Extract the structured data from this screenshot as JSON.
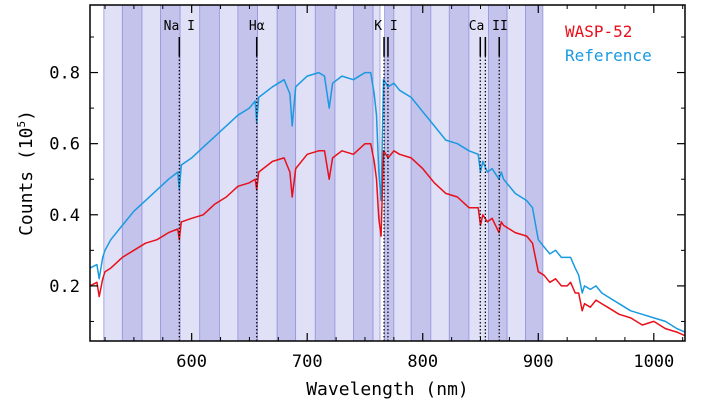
{
  "chart_data": {
    "type": "line",
    "xlabel": "Wavelength (nm)",
    "ylabel_prefix": "Counts (10",
    "ylabel_exp": "5",
    "ylabel_suffix": ")",
    "xlim": [
      512,
      1027
    ],
    "ylim": [
      0.045,
      0.99
    ],
    "x_ticks": [
      600,
      700,
      800,
      900,
      1000
    ],
    "x_tick_labels": [
      "600",
      "700",
      "800",
      "900",
      "1000"
    ],
    "y_ticks": [
      0.2,
      0.4,
      0.6,
      0.8
    ],
    "y_tick_labels": [
      "0.2",
      "0.4",
      "0.6",
      "0.8"
    ],
    "bands": [
      {
        "x0": 524,
        "x1": 540,
        "shade": "light"
      },
      {
        "x0": 540,
        "x1": 557,
        "shade": "dark"
      },
      {
        "x0": 557,
        "x1": 573,
        "shade": "light"
      },
      {
        "x0": 573,
        "x1": 590,
        "shade": "dark"
      },
      {
        "x0": 590,
        "x1": 607,
        "shade": "light"
      },
      {
        "x0": 607,
        "x1": 624,
        "shade": "dark"
      },
      {
        "x0": 624,
        "x1": 640,
        "shade": "light"
      },
      {
        "x0": 640,
        "x1": 657,
        "shade": "dark"
      },
      {
        "x0": 657,
        "x1": 674,
        "shade": "light"
      },
      {
        "x0": 674,
        "x1": 690,
        "shade": "dark"
      },
      {
        "x0": 690,
        "x1": 707,
        "shade": "light"
      },
      {
        "x0": 707,
        "x1": 724,
        "shade": "dark"
      },
      {
        "x0": 724,
        "x1": 740,
        "shade": "light"
      },
      {
        "x0": 740,
        "x1": 757,
        "shade": "dark"
      },
      {
        "x0": 757,
        "x1": 763,
        "shade": "light"
      },
      {
        "x0": 767,
        "x1": 775,
        "shade": "dark"
      },
      {
        "x0": 775,
        "x1": 790,
        "shade": "light"
      },
      {
        "x0": 790,
        "x1": 807,
        "shade": "dark"
      },
      {
        "x0": 807,
        "x1": 823,
        "shade": "light"
      },
      {
        "x0": 823,
        "x1": 840,
        "shade": "dark"
      },
      {
        "x0": 840,
        "x1": 857,
        "shade": "light"
      },
      {
        "x0": 857,
        "x1": 873,
        "shade": "dark"
      },
      {
        "x0": 873,
        "x1": 889,
        "shade": "light"
      },
      {
        "x0": 889,
        "x1": 904,
        "shade": "dark"
      }
    ],
    "line_markers": [
      {
        "label": "Na I",
        "lines": [
          589.3
        ]
      },
      {
        "label": "Hα",
        "lines": [
          656.3
        ]
      },
      {
        "label": "K I",
        "lines": [
          766.5,
          769.9
        ]
      },
      {
        "label": "Ca II",
        "lines": [
          849.8,
          854.2,
          866.2
        ]
      }
    ],
    "series": [
      {
        "name": "WASP-52",
        "color": "#e8101a",
        "x": [
          512,
          518,
          520,
          523,
          525,
          530,
          540,
          550,
          560,
          570,
          580,
          588,
          589.3,
          591,
          600,
          610,
          620,
          630,
          640,
          650,
          655,
          656.3,
          658,
          670,
          680,
          685,
          687,
          690,
          700,
          710,
          715,
          719,
          722,
          730,
          740,
          750,
          755,
          758,
          760,
          762,
          764,
          766,
          770,
          775,
          780,
          790,
          800,
          810,
          820,
          830,
          840,
          848,
          850,
          852,
          856,
          860,
          866,
          868,
          870,
          880,
          890,
          895,
          900,
          905,
          910,
          915,
          920,
          925,
          928,
          932,
          935,
          938,
          940,
          945,
          950,
          955,
          960,
          970,
          980,
          990,
          1000,
          1010,
          1020,
          1027
        ],
        "y": [
          0.2,
          0.21,
          0.17,
          0.22,
          0.24,
          0.25,
          0.28,
          0.3,
          0.32,
          0.33,
          0.35,
          0.36,
          0.33,
          0.38,
          0.39,
          0.4,
          0.43,
          0.45,
          0.48,
          0.49,
          0.5,
          0.47,
          0.52,
          0.55,
          0.56,
          0.52,
          0.45,
          0.53,
          0.57,
          0.58,
          0.58,
          0.5,
          0.56,
          0.58,
          0.57,
          0.6,
          0.6,
          0.55,
          0.5,
          0.39,
          0.34,
          0.58,
          0.56,
          0.58,
          0.57,
          0.56,
          0.53,
          0.49,
          0.46,
          0.45,
          0.42,
          0.42,
          0.37,
          0.4,
          0.38,
          0.39,
          0.35,
          0.38,
          0.37,
          0.35,
          0.34,
          0.32,
          0.24,
          0.23,
          0.21,
          0.22,
          0.2,
          0.2,
          0.21,
          0.18,
          0.18,
          0.13,
          0.15,
          0.14,
          0.16,
          0.15,
          0.14,
          0.12,
          0.11,
          0.09,
          0.1,
          0.08,
          0.07,
          0.06
        ]
      },
      {
        "name": "Reference",
        "color": "#1a9ae0",
        "x": [
          512,
          518,
          520,
          523,
          525,
          530,
          540,
          550,
          560,
          570,
          580,
          588,
          589.3,
          591,
          600,
          610,
          620,
          630,
          640,
          650,
          655,
          656.3,
          658,
          670,
          680,
          685,
          687,
          690,
          700,
          710,
          715,
          719,
          722,
          730,
          740,
          750,
          755,
          758,
          760,
          762,
          764,
          766,
          770,
          775,
          780,
          790,
          800,
          810,
          820,
          830,
          840,
          848,
          850,
          852,
          856,
          860,
          866,
          868,
          870,
          880,
          890,
          895,
          900,
          905,
          910,
          915,
          920,
          925,
          928,
          932,
          935,
          938,
          940,
          945,
          950,
          955,
          960,
          970,
          980,
          990,
          1000,
          1010,
          1020,
          1027
        ],
        "y": [
          0.25,
          0.26,
          0.22,
          0.28,
          0.3,
          0.33,
          0.37,
          0.41,
          0.44,
          0.47,
          0.5,
          0.52,
          0.47,
          0.54,
          0.56,
          0.59,
          0.62,
          0.65,
          0.68,
          0.7,
          0.72,
          0.66,
          0.73,
          0.76,
          0.78,
          0.74,
          0.65,
          0.76,
          0.79,
          0.8,
          0.79,
          0.7,
          0.77,
          0.79,
          0.78,
          0.8,
          0.8,
          0.74,
          0.68,
          0.52,
          0.44,
          0.78,
          0.76,
          0.77,
          0.75,
          0.73,
          0.69,
          0.65,
          0.61,
          0.6,
          0.58,
          0.57,
          0.52,
          0.55,
          0.52,
          0.53,
          0.5,
          0.52,
          0.5,
          0.46,
          0.44,
          0.42,
          0.33,
          0.31,
          0.29,
          0.3,
          0.28,
          0.28,
          0.28,
          0.25,
          0.23,
          0.18,
          0.2,
          0.19,
          0.2,
          0.18,
          0.17,
          0.15,
          0.13,
          0.12,
          0.11,
          0.1,
          0.08,
          0.07
        ]
      }
    ],
    "colors": {
      "band_dark": "#c3c3ec",
      "band_light": "#e0e0f7",
      "band_edge": "#9595dc"
    }
  }
}
